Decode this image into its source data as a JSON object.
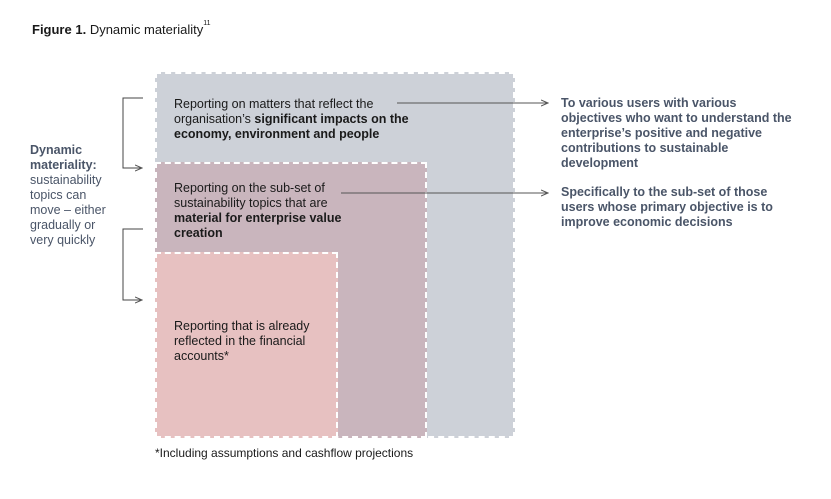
{
  "figure": {
    "title_bold": "Figure 1.",
    "title_text": "Dynamic materiality",
    "title_sup": "11"
  },
  "boxes": {
    "outer": {
      "text_plain": "Reporting on matters that reflect the organisation’s ",
      "text_bold": "significant impacts on the economy, environment and people"
    },
    "middle": {
      "text_plain": "Reporting on the sub-set of sustainability topics that are ",
      "text_bold": "material for enterprise value creation"
    },
    "inner": {
      "text_plain": "Reporting that is already reflected in the financial accounts*"
    }
  },
  "arrows": {
    "first": "To various users with various objectives who want to understand the enterprise’s positive and negative contributions to sustainable development",
    "second": "Specifically to the sub-set of those users whose primary objective is to improve economic decisions"
  },
  "side": {
    "bold": "Dynamic materiality:",
    "text": "sustainability topics can move – either gradually or very quickly"
  },
  "footnote": "*Including assumptions and cashflow projections",
  "colors": {
    "outer_box": "#cdd1d8",
    "middle_box": "#c9b5bd",
    "inner_box": "#e7c1c1",
    "accent_text": "#4a5568"
  }
}
